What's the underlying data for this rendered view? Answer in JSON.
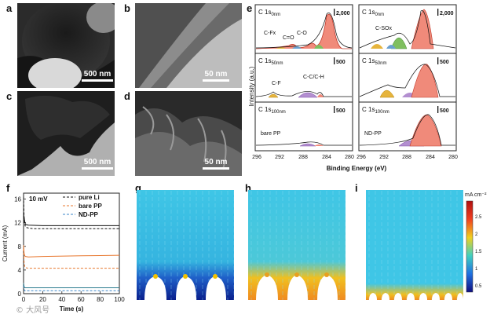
{
  "panels": {
    "a": {
      "label": "a",
      "scale": "500 nm"
    },
    "b": {
      "label": "b",
      "scale": "50 nm"
    },
    "c": {
      "label": "c",
      "scale": "500 nm"
    },
    "d": {
      "label": "d",
      "scale": "50 nm"
    },
    "e": {
      "label": "e"
    },
    "f": {
      "label": "f"
    },
    "g": {
      "label": "g"
    },
    "h": {
      "label": "h"
    },
    "i": {
      "label": "i"
    }
  },
  "xps": {
    "ylabel": "Intensity (a.u.)",
    "xlabel": "Binding Energy (eV)",
    "left_ticks": [
      "296",
      "292",
      "288",
      "284",
      "280"
    ],
    "right_ticks": [
      "296",
      "292",
      "288",
      "284",
      "280"
    ],
    "left_rows": [
      {
        "title_main": "C 1s",
        "title_sub": "0nm",
        "scale": "2,000",
        "annotations": [
          "C-Fx",
          "C=O",
          "C-O"
        ]
      },
      {
        "title_main": "C 1s",
        "title_sub": "50nm",
        "scale": "500",
        "annotations": [
          "C-F",
          "C-C/C-H"
        ]
      },
      {
        "title_main": "C 1s",
        "title_sub": "100nm",
        "scale": "500",
        "annotations": [
          "bare PP"
        ]
      }
    ],
    "right_rows": [
      {
        "title_main": "C 1s",
        "title_sub": "0nm",
        "scale": "2,000",
        "annotations": [
          "C-SOx"
        ]
      },
      {
        "title_main": "C 1s",
        "title_sub": "50nm",
        "scale": "500",
        "annotations": []
      },
      {
        "title_main": "C 1s",
        "title_sub": "100nm",
        "scale": "500",
        "annotations": [
          "ND-PP"
        ]
      }
    ]
  },
  "colorbar": {
    "unit": "mA cm⁻²",
    "ticks": [
      "2.5",
      "2",
      "1.5",
      "1",
      "0.5"
    ]
  },
  "chart_data": {
    "type": "line",
    "title": "",
    "annotation": "10 mV",
    "xlabel": "Time (s)",
    "ylabel": "Current (mA)",
    "xlim": [
      0,
      100
    ],
    "ylim": [
      0,
      17
    ],
    "xticks": [
      0,
      20,
      40,
      60,
      80,
      100
    ],
    "yticks": [
      0,
      4,
      8,
      12,
      16
    ],
    "series": [
      {
        "name": "pure Li",
        "color": "#111111",
        "style": "dashed",
        "x": [
          0,
          0.5,
          1,
          2,
          3,
          5,
          10,
          20,
          40,
          60,
          80,
          100
        ],
        "y": [
          16.4,
          12.8,
          11.8,
          11.3,
          11.2,
          11.1,
          11.0,
          11.0,
          11.0,
          11.0,
          11.0,
          11.0
        ]
      },
      {
        "name": "pure Li (solid)",
        "color": "#111111",
        "style": "solid",
        "x": [
          0,
          1,
          2,
          5,
          20,
          60,
          100
        ],
        "y": [
          13.5,
          12.2,
          11.7,
          11.6,
          11.5,
          11.5,
          11.5
        ]
      },
      {
        "name": "bare PP",
        "color": "#e8772e",
        "style": "dashed",
        "x": [
          0,
          0.5,
          1,
          2,
          5,
          10,
          20,
          40,
          60,
          80,
          100
        ],
        "y": [
          7.6,
          5.2,
          4.6,
          4.4,
          4.3,
          4.3,
          4.3,
          4.3,
          4.3,
          4.3,
          4.3
        ]
      },
      {
        "name": "bare PP (solid)",
        "color": "#e8772e",
        "style": "solid",
        "x": [
          0,
          0.5,
          1,
          2,
          5,
          20,
          60,
          100
        ],
        "y": [
          8.2,
          6.8,
          6.4,
          6.3,
          6.2,
          6.3,
          6.4,
          6.5
        ]
      },
      {
        "name": "ND-PP",
        "color": "#3a86c8",
        "style": "dashed",
        "x": [
          0,
          0.5,
          1,
          2,
          5,
          20,
          60,
          100
        ],
        "y": [
          1.4,
          0.7,
          0.5,
          0.5,
          0.5,
          0.5,
          0.5,
          0.5
        ]
      },
      {
        "name": "ND-PP (solid)",
        "color": "#2a7a8e",
        "style": "solid",
        "x": [
          0,
          0.5,
          1,
          2,
          5,
          20,
          60,
          100
        ],
        "y": [
          1.8,
          1.2,
          1.0,
          1.0,
          1.0,
          1.0,
          1.0,
          1.0
        ]
      }
    ],
    "legend": [
      "pure Li",
      "bare PP",
      "ND-PP"
    ]
  },
  "watermark": "© 大风号"
}
